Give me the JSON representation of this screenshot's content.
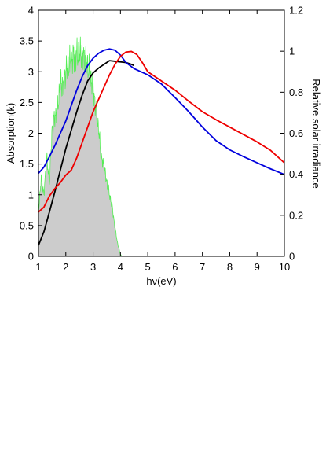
{
  "chart_data": {
    "type": "line",
    "title": "",
    "xlabel": "hν(eV)",
    "ylabel": "Absorption(k)",
    "y2label": "Relative solar irradiance",
    "xlim": [
      1,
      10
    ],
    "ylim": [
      0,
      4
    ],
    "y2lim": [
      0,
      1.2
    ],
    "x_ticks": [
      "1",
      "2",
      "3",
      "4",
      "5",
      "6",
      "7",
      "8",
      "9",
      "10"
    ],
    "y_ticks": [
      "0",
      "0.5",
      "1",
      "1.5",
      "2",
      "2.5",
      "3",
      "3.5",
      "4"
    ],
    "y2_ticks": [
      "0",
      "0.2",
      "0.4",
      "0.6",
      "0.8",
      "1",
      "1.2"
    ],
    "grid": false,
    "legend": "none",
    "solar_spectrum": {
      "axis": "right",
      "fill_color": "#cccccc",
      "line_color": "#55ee55",
      "x": [
        1.0,
        1.1,
        1.2,
        1.3,
        1.4,
        1.5,
        1.6,
        1.7,
        1.8,
        1.9,
        2.0,
        2.1,
        2.2,
        2.3,
        2.4,
        2.5,
        2.6,
        2.7,
        2.8,
        2.9,
        3.0,
        3.1,
        3.2,
        3.3,
        3.4,
        3.5,
        3.6,
        3.7,
        3.8,
        3.9,
        4.0,
        4.05
      ],
      "y": [
        0.22,
        0.38,
        0.3,
        0.48,
        0.36,
        0.62,
        0.68,
        0.72,
        0.85,
        0.83,
        0.9,
        0.93,
        0.96,
        0.97,
        0.98,
        0.99,
        0.98,
        0.97,
        0.93,
        0.88,
        0.82,
        0.72,
        0.62,
        0.48,
        0.44,
        0.36,
        0.3,
        0.24,
        0.14,
        0.06,
        0.01,
        0.0
      ]
    },
    "series": [
      {
        "color": "#000000",
        "axis": "left",
        "x": [
          1.0,
          1.2,
          1.4,
          1.6,
          1.8,
          2.0,
          2.2,
          2.4,
          2.6,
          2.8,
          3.0,
          3.2,
          3.4,
          3.6,
          3.8,
          4.0,
          4.2,
          4.4,
          4.5
        ],
        "y": [
          0.18,
          0.4,
          0.72,
          1.05,
          1.4,
          1.75,
          2.05,
          2.35,
          2.62,
          2.85,
          2.98,
          3.06,
          3.12,
          3.18,
          3.17,
          3.16,
          3.15,
          3.12,
          3.1
        ]
      },
      {
        "color": "#0000dd",
        "axis": "left",
        "x": [
          1.0,
          1.2,
          1.4,
          1.6,
          1.8,
          2.0,
          2.2,
          2.4,
          2.6,
          2.8,
          3.0,
          3.2,
          3.4,
          3.6,
          3.8,
          4.0,
          4.2,
          4.5,
          5.0,
          5.5,
          6.0,
          6.5,
          7.0,
          7.5,
          8.0,
          8.5,
          9.0,
          9.5,
          10.0
        ],
        "y": [
          1.35,
          1.45,
          1.62,
          1.8,
          2.0,
          2.2,
          2.45,
          2.7,
          2.92,
          3.1,
          3.22,
          3.3,
          3.35,
          3.37,
          3.35,
          3.27,
          3.15,
          3.05,
          2.95,
          2.8,
          2.58,
          2.35,
          2.1,
          1.88,
          1.73,
          1.62,
          1.52,
          1.42,
          1.33
        ]
      },
      {
        "color": "#ee0000",
        "axis": "left",
        "x": [
          1.0,
          1.2,
          1.4,
          1.6,
          1.8,
          2.0,
          2.2,
          2.4,
          2.6,
          2.8,
          3.0,
          3.2,
          3.4,
          3.6,
          3.8,
          4.0,
          4.2,
          4.4,
          4.6,
          4.8,
          5.0,
          5.5,
          6.0,
          6.5,
          7.0,
          7.5,
          8.0,
          8.5,
          9.0,
          9.5,
          10.0
        ],
        "y": [
          0.72,
          0.8,
          0.98,
          1.1,
          1.2,
          1.32,
          1.4,
          1.6,
          1.85,
          2.1,
          2.35,
          2.55,
          2.75,
          2.95,
          3.12,
          3.25,
          3.32,
          3.33,
          3.28,
          3.15,
          3.0,
          2.85,
          2.7,
          2.52,
          2.35,
          2.22,
          2.1,
          1.98,
          1.86,
          1.72,
          1.52
        ]
      }
    ]
  }
}
